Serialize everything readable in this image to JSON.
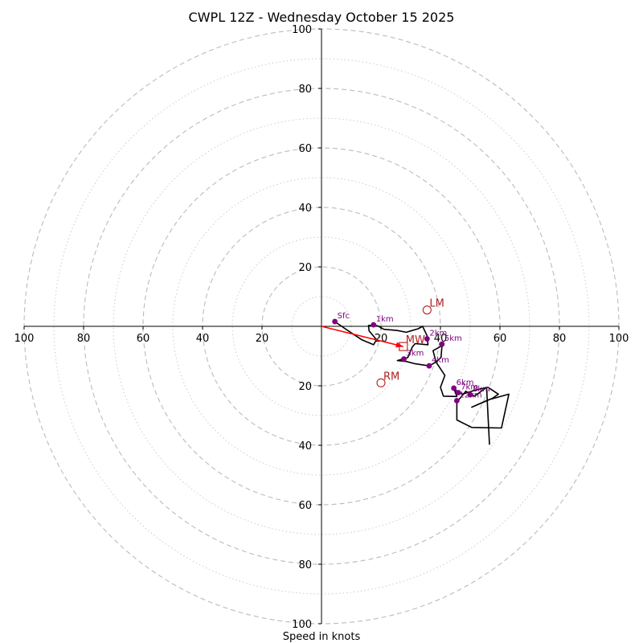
{
  "chart_data": {
    "type": "scatter",
    "subtype": "hodograph",
    "title": "CWPL 12Z - Wednesday October 15 2025",
    "xlabel": "Speed in knots",
    "ylabel": "",
    "range": [
      -100,
      100
    ],
    "major_rings": [
      20,
      40,
      60,
      80,
      100
    ],
    "minor_rings": [
      10,
      30,
      50,
      70,
      90
    ],
    "axis_ticks": [
      {
        "value": 20,
        "label": "20"
      },
      {
        "value": 40,
        "label": "40"
      },
      {
        "value": 60,
        "label": "60"
      },
      {
        "value": 80,
        "label": "80"
      },
      {
        "value": 100,
        "label": "100"
      }
    ],
    "hodograph_trace": [
      [
        4.5,
        1.6
      ],
      [
        7.5,
        -0.5
      ],
      [
        10.5,
        -2.5
      ],
      [
        13.5,
        -4.5
      ],
      [
        17.5,
        -6.2
      ],
      [
        18.5,
        -4.5
      ],
      [
        16,
        -1.5
      ],
      [
        15.8,
        0.3
      ],
      [
        18.8,
        0.2
      ],
      [
        21,
        -1
      ],
      [
        25.5,
        -1.4
      ],
      [
        28.5,
        -2
      ],
      [
        32.5,
        -0.8
      ],
      [
        34,
        0
      ],
      [
        35.5,
        -3.2
      ],
      [
        35.8,
        -6.2
      ],
      [
        31.5,
        -5.8
      ],
      [
        30.5,
        -7
      ],
      [
        29,
        -10.5
      ],
      [
        25.5,
        -11.5
      ],
      [
        28.5,
        -11.8
      ],
      [
        31.5,
        -12.6
      ],
      [
        36.2,
        -13.3
      ],
      [
        38.2,
        -12.2
      ],
      [
        40.2,
        -10.5
      ],
      [
        40.5,
        -6.5
      ],
      [
        37.5,
        -8.2
      ],
      [
        38.5,
        -12
      ],
      [
        41.5,
        -16.5
      ],
      [
        40,
        -20.5
      ],
      [
        41,
        -23.5
      ],
      [
        45.5,
        -23.6
      ],
      [
        44.5,
        -20.8
      ],
      [
        46,
        -22.3
      ],
      [
        47.5,
        -22.8
      ],
      [
        51.5,
        -21.5
      ],
      [
        56,
        -20.5
      ],
      [
        59.5,
        -22.8
      ],
      [
        57.5,
        -24.2
      ],
      [
        50.5,
        -27.2
      ],
      [
        56.2,
        -24.7
      ],
      [
        63,
        -22.8
      ],
      [
        60.5,
        -34.2
      ],
      [
        50.5,
        -34
      ],
      [
        45.5,
        -31.5
      ],
      [
        45.5,
        -25.5
      ],
      [
        48.5,
        -21.8
      ],
      [
        51.5,
        -23.5
      ],
      [
        55.5,
        -20.5
      ],
      [
        56.5,
        -39.8
      ]
    ],
    "altitude_markers": [
      {
        "label": "Sfc",
        "u": 4.5,
        "v": 1.6
      },
      {
        "label": "1km",
        "u": 17.5,
        "v": 0.5
      },
      {
        "label": "2km",
        "u": 35.5,
        "v": -4.2
      },
      {
        "label": "3km",
        "u": 27.7,
        "v": -11
      },
      {
        "label": "4km",
        "u": 36.2,
        "v": -13.3
      },
      {
        "label": "5km",
        "u": 40.5,
        "v": -6
      },
      {
        "label": "6km",
        "u": 44.5,
        "v": -20.8
      },
      {
        "label": "7km",
        "u": 46,
        "v": -22.3
      },
      {
        "label": "8km",
        "u": 50,
        "v": -23
      },
      {
        "label": "12km",
        "u": 45.5,
        "v": -25
      }
    ],
    "storm_motions": [
      {
        "label": "LM",
        "u": 35.5,
        "v": 5.5,
        "shape": "circle"
      },
      {
        "label": "RM",
        "u": 20,
        "v": -19,
        "shape": "circle"
      },
      {
        "label": "MW",
        "u": 27.5,
        "v": -6.8,
        "shape": "square"
      }
    ],
    "shear_vector": {
      "from": [
        0,
        0
      ],
      "to": [
        27.5,
        -6.8
      ],
      "color": "#ff0000"
    },
    "colors": {
      "trace": "#000000",
      "markers": "#800080",
      "motion": "#b22222",
      "grid": "#bbbbbb",
      "shear": "#ff0000"
    }
  }
}
